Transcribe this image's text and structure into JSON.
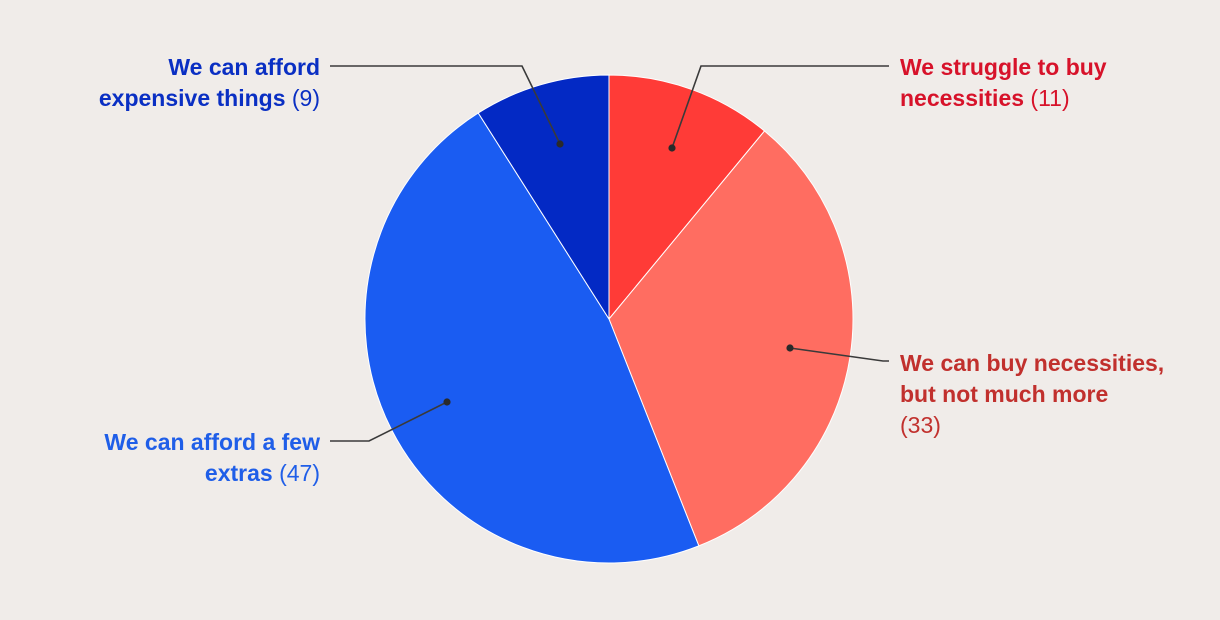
{
  "chart_data": {
    "type": "pie",
    "title": "",
    "slices": [
      {
        "label_lines": [
          "We struggle to buy",
          "necessities"
        ],
        "count_text": "(11)",
        "value": 11,
        "color": "#ff3b37",
        "label_color": "#d7122a"
      },
      {
        "label_lines": [
          "We can buy necessities,",
          "but not much more"
        ],
        "count_text": "(33)",
        "value": 33,
        "color": "#ff6d61",
        "label_color": "#c1302d"
      },
      {
        "label_lines": [
          "We can afford a few",
          "extras"
        ],
        "count_text": "(47)",
        "value": 47,
        "color": "#1a5cf2",
        "label_color": "#1f5ee8"
      },
      {
        "label_lines": [
          "We can afford",
          "expensive things"
        ],
        "count_text": "(9)",
        "value": 9,
        "color": "#0329c4",
        "label_color": "#0a2fc3"
      }
    ],
    "leader_color": "#3a3a3a",
    "background": "#f0ece9"
  }
}
